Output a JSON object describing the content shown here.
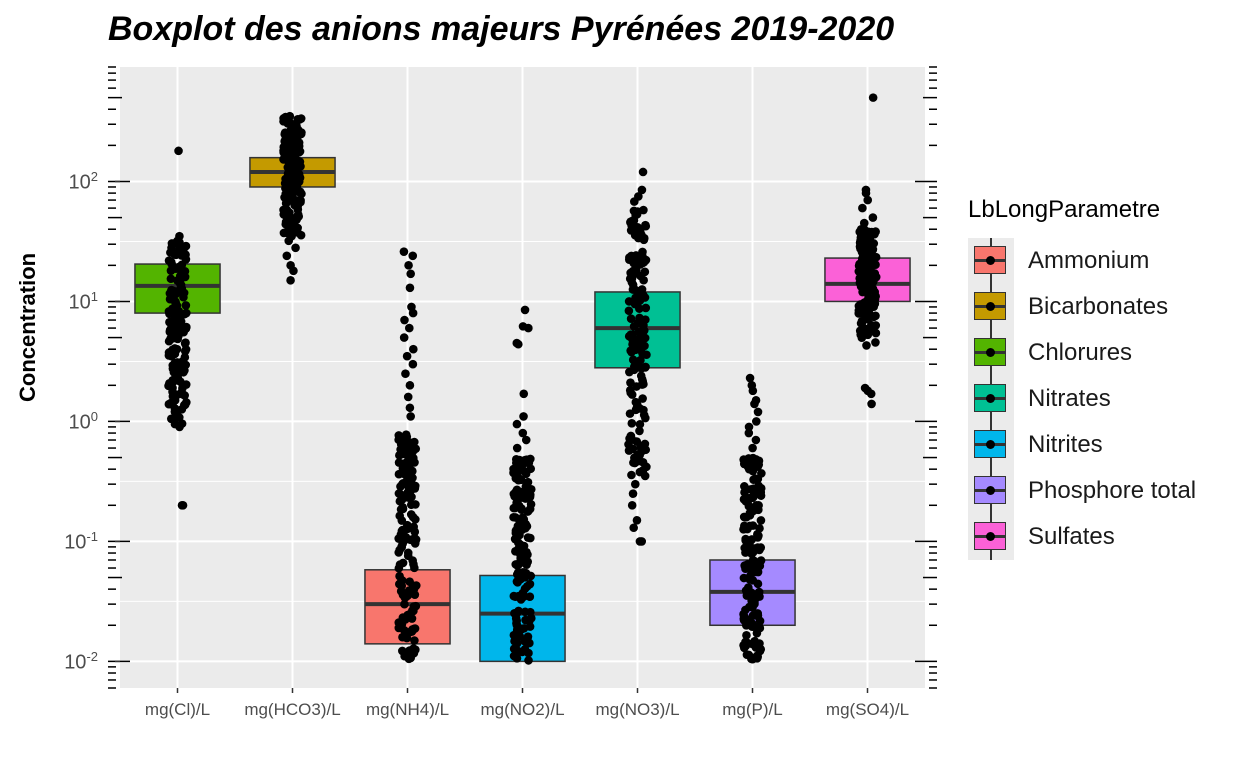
{
  "chart_data": {
    "type": "boxplot",
    "title": "Boxplot des anions majeurs Pyrénées 2019-2020",
    "xlabel": "",
    "ylabel": "Concentration",
    "yscale": "log10",
    "ylim": [
      0.006,
      900
    ],
    "yticks": [
      {
        "value": 0.01,
        "base": "10",
        "exp": "-2"
      },
      {
        "value": 0.1,
        "base": "10",
        "exp": "-1"
      },
      {
        "value": 1,
        "base": "10",
        "exp": "0"
      },
      {
        "value": 10,
        "base": "10",
        "exp": "1"
      },
      {
        "value": 100,
        "base": "10",
        "exp": "2"
      }
    ],
    "grid": true,
    "legend": {
      "title": "LbLongParametre",
      "placement": "right"
    },
    "categories": [
      "mg(Cl)/L",
      "mg(HCO3)/L",
      "mg(NH4)/L",
      "mg(NO2)/L",
      "mg(NO3)/L",
      "mg(P)/L",
      "mg(SO4)/L"
    ],
    "series": [
      {
        "name": "Chlorures",
        "category": "mg(Cl)/L",
        "color": "#53B400",
        "q1": 8,
        "median": 13.5,
        "q3": 20.5,
        "points": {
          "min": 0.2,
          "max": 180,
          "dense_low": 0.9,
          "dense_high": 35,
          "outliers": [
            180,
            35,
            32,
            30,
            28,
            25,
            4,
            3.5,
            2.7,
            2.2,
            1.9,
            1.5,
            1.2,
            0.9,
            0.2,
            0.2
          ]
        }
      },
      {
        "name": "Bicarbonates",
        "category": "mg(HCO3)/L",
        "color": "#C49A00",
        "q1": 90,
        "median": 120,
        "q3": 158,
        "points": {
          "min": 15,
          "max": 350,
          "dense_low": 35,
          "dense_high": 350,
          "outliers": [
            350,
            330,
            300,
            270,
            240,
            210,
            32,
            28,
            24,
            20,
            18,
            15
          ]
        }
      },
      {
        "name": "Ammonium",
        "category": "mg(NH4)/L",
        "color": "#F8766D",
        "q1": 0.014,
        "median": 0.03,
        "q3": 0.058,
        "points": {
          "min": 0.01,
          "max": 26,
          "dense_low": 0.01,
          "dense_high": 0.8,
          "outliers": [
            26,
            24,
            20,
            17,
            13,
            9,
            8,
            7,
            6,
            5,
            4,
            3.5,
            3,
            2.5,
            2,
            1.6,
            1.3,
            1.1
          ]
        }
      },
      {
        "name": "Nitrites",
        "category": "mg(NO2)/L",
        "color": "#00B6EB",
        "q1": 0.01,
        "median": 0.025,
        "q3": 0.052,
        "points": {
          "min": 0.01,
          "max": 8.5,
          "dense_low": 0.01,
          "dense_high": 0.5,
          "outliers": [
            8.5,
            6,
            6.2,
            4.5,
            4.4,
            1.7,
            1.1,
            0.95,
            0.8,
            0.7,
            0.6
          ]
        }
      },
      {
        "name": "Nitrates",
        "category": "mg(NO3)/L",
        "color": "#00C094",
        "q1": 2.8,
        "median": 6,
        "q3": 12,
        "points": {
          "min": 0.1,
          "max": 120,
          "dense_low": 0.35,
          "dense_high": 60,
          "outliers": [
            120,
            85,
            75,
            68,
            0.3,
            0.25,
            0.2,
            0.15,
            0.13,
            0.1,
            0.1
          ]
        }
      },
      {
        "name": "Phosphore total",
        "category": "mg(P)/L",
        "color": "#A58AFF",
        "q1": 0.02,
        "median": 0.038,
        "q3": 0.07,
        "points": {
          "min": 0.01,
          "max": 2.3,
          "dense_low": 0.01,
          "dense_high": 0.5,
          "outliers": [
            2.3,
            2.0,
            1.8,
            1.5,
            1.4,
            1.2,
            1.0,
            0.9,
            0.8,
            0.7,
            0.6
          ]
        }
      },
      {
        "name": "Sulfates",
        "category": "mg(SO4)/L",
        "color": "#FB61D7",
        "q1": 10,
        "median": 14,
        "q3": 23,
        "points": {
          "min": 1.4,
          "max": 500,
          "dense_low": 4.5,
          "dense_high": 40,
          "outliers": [
            500,
            85,
            80,
            70,
            60,
            50,
            45,
            4.3,
            1.9,
            1.8,
            1.7,
            1.4
          ]
        }
      }
    ],
    "legend_order": [
      "Ammonium",
      "Bicarbonates",
      "Chlorures",
      "Nitrates",
      "Nitrites",
      "Phosphore total",
      "Sulfates"
    ]
  }
}
